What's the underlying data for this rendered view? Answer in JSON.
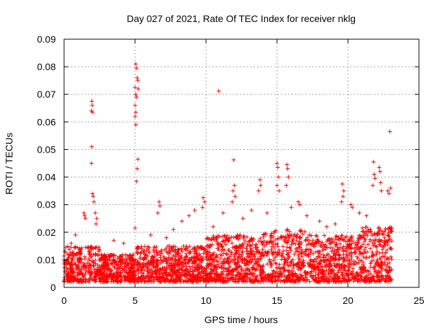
{
  "chart_data": {
    "type": "scatter",
    "title": "Day 027 of 2021, Rate Of TEC Index for receiver nklg",
    "xlabel": "GPS time / hours",
    "ylabel": "ROTI / TECUs",
    "xlim": [
      0,
      25
    ],
    "ylim": [
      0,
      0.09
    ],
    "x_ticks": [
      "0",
      "5",
      "10",
      "15",
      "20",
      "25"
    ],
    "x_tick_values": [
      0,
      5,
      10,
      15,
      20,
      25
    ],
    "y_ticks": [
      "0",
      "0.01",
      "0.02",
      "0.03",
      "0.04",
      "0.05",
      "0.06",
      "0.07",
      "0.08",
      "0.09"
    ],
    "y_tick_values": [
      0,
      0.01,
      0.02,
      0.03,
      0.04,
      0.05,
      0.06,
      0.07,
      0.08,
      0.09
    ],
    "grid": true,
    "marker": "plus",
    "marker_color": "#ff0000",
    "baseline_band": {
      "x_range": [
        0,
        23.1
      ],
      "y_min": 0.002,
      "y_typical_max": 0.015,
      "description_points_per_hour": 60
    },
    "series": [
      {
        "name": "ROTI",
        "points": [
          [
            1.95,
            0.0675
          ],
          [
            1.98,
            0.066
          ],
          [
            1.92,
            0.064
          ],
          [
            2.0,
            0.0635
          ],
          [
            1.95,
            0.051
          ],
          [
            1.93,
            0.045
          ],
          [
            2.0,
            0.034
          ],
          [
            2.05,
            0.033
          ],
          [
            2.1,
            0.031
          ],
          [
            2.2,
            0.027
          ],
          [
            2.3,
            0.025
          ],
          [
            2.25,
            0.023
          ],
          [
            1.4,
            0.027
          ],
          [
            1.45,
            0.026
          ],
          [
            1.5,
            0.025
          ],
          [
            5.05,
            0.081
          ],
          [
            5.1,
            0.0795
          ],
          [
            5.15,
            0.076
          ],
          [
            5.2,
            0.075
          ],
          [
            5.22,
            0.072
          ],
          [
            5.0,
            0.0725
          ],
          [
            5.05,
            0.07
          ],
          [
            5.1,
            0.069
          ],
          [
            5.0,
            0.066
          ],
          [
            5.05,
            0.0635
          ],
          [
            5.0,
            0.062
          ],
          [
            5.05,
            0.059
          ],
          [
            5.2,
            0.0465
          ],
          [
            5.15,
            0.043
          ],
          [
            5.1,
            0.0385
          ],
          [
            5.0,
            0.0215
          ],
          [
            6.7,
            0.031
          ],
          [
            6.75,
            0.0295
          ],
          [
            6.6,
            0.027
          ],
          [
            10.9,
            0.0712
          ],
          [
            11.95,
            0.0462
          ],
          [
            12.0,
            0.037
          ],
          [
            11.9,
            0.035
          ],
          [
            12.05,
            0.033
          ],
          [
            11.85,
            0.031
          ],
          [
            9.8,
            0.0325
          ],
          [
            9.9,
            0.031
          ],
          [
            9.75,
            0.029
          ],
          [
            13.8,
            0.039
          ],
          [
            13.85,
            0.037
          ],
          [
            13.7,
            0.035
          ],
          [
            15.0,
            0.045
          ],
          [
            15.05,
            0.0435
          ],
          [
            15.1,
            0.04
          ],
          [
            15.0,
            0.037
          ],
          [
            15.15,
            0.035
          ],
          [
            15.7,
            0.0445
          ],
          [
            15.75,
            0.043
          ],
          [
            15.8,
            0.04
          ],
          [
            15.65,
            0.037
          ],
          [
            16.5,
            0.031
          ],
          [
            16.6,
            0.03
          ],
          [
            19.6,
            0.0375
          ],
          [
            19.7,
            0.035
          ],
          [
            19.65,
            0.033
          ],
          [
            19.55,
            0.031
          ],
          [
            20.2,
            0.03
          ],
          [
            20.3,
            0.029
          ],
          [
            21.8,
            0.0455
          ],
          [
            21.85,
            0.041
          ],
          [
            21.9,
            0.0395
          ],
          [
            21.75,
            0.037
          ],
          [
            22.2,
            0.0435
          ],
          [
            22.25,
            0.042
          ],
          [
            22.3,
            0.038
          ],
          [
            22.35,
            0.035
          ],
          [
            22.8,
            0.035
          ],
          [
            22.9,
            0.034
          ],
          [
            23.0,
            0.036
          ],
          [
            22.95,
            0.0565
          ],
          [
            8.3,
            0.024
          ],
          [
            8.8,
            0.026
          ],
          [
            7.7,
            0.021
          ],
          [
            9.2,
            0.028
          ],
          [
            10.5,
            0.022
          ],
          [
            11.2,
            0.027
          ],
          [
            12.6,
            0.025
          ],
          [
            13.2,
            0.028
          ],
          [
            14.3,
            0.027
          ],
          [
            16.0,
            0.029
          ],
          [
            17.1,
            0.026
          ],
          [
            18.0,
            0.024
          ],
          [
            18.5,
            0.022
          ],
          [
            19.1,
            0.023
          ],
          [
            20.8,
            0.027
          ],
          [
            21.3,
            0.026
          ],
          [
            3.5,
            0.017
          ],
          [
            4.2,
            0.016
          ],
          [
            0.8,
            0.019
          ],
          [
            0.5,
            0.016
          ],
          [
            6.1,
            0.019
          ],
          [
            7.2,
            0.018
          ]
        ]
      }
    ]
  }
}
